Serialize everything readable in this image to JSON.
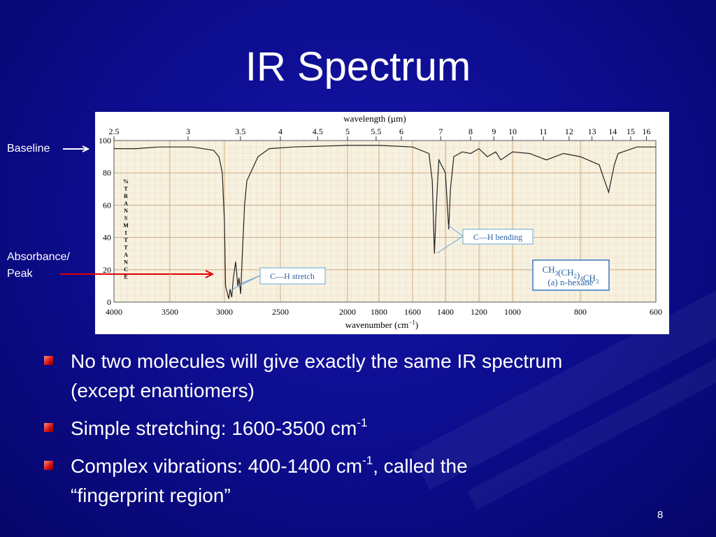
{
  "slide": {
    "title": "IR Spectrum",
    "page_number": "8",
    "callout_baseline": "Baseline",
    "callout_absorbance": [
      "Absorbance/",
      "Peak"
    ],
    "bullets": [
      [
        [
          {
            "text": "No two molecules will give exactly the same IR spectrum"
          }
        ],
        [
          {
            "text": "(except enantiomers)"
          }
        ]
      ],
      [
        [
          {
            "text": "Simple stretching:  1600-3500 cm"
          },
          {
            "sup": "-1"
          }
        ]
      ],
      [
        [
          {
            "text": "Complex vibrations:  400-1400 cm"
          },
          {
            "sup": "-1"
          },
          {
            "text": ", called the"
          }
        ],
        [
          {
            "text": "“fingerprint region”"
          }
        ]
      ]
    ]
  },
  "chart_data": {
    "type": "line",
    "x2label": "wavelength (µm)",
    "xlabel": {
      "text": "wavenumber (cm",
      "sup": "−1",
      "after": ")"
    },
    "ylabel": "% TRANSMITTANCE",
    "x": [
      4000,
      3800,
      3600,
      3300,
      3100,
      3050,
      3020,
      3000,
      2990,
      2962,
      2950,
      2935,
      2920,
      2900,
      2880,
      2870,
      2855,
      2840,
      2820,
      2800,
      2700,
      2600,
      2400,
      2000,
      1800,
      1600,
      1500,
      1480,
      1467,
      1455,
      1440,
      1400,
      1380,
      1370,
      1350,
      1300,
      1250,
      1200,
      1150,
      1100,
      1070,
      1000,
      950,
      900,
      850,
      800,
      780,
      750,
      740,
      725,
      710,
      700,
      650,
      600
    ],
    "values": [
      95,
      95,
      96,
      96,
      94,
      90,
      80,
      50,
      10,
      2,
      8,
      3,
      15,
      25,
      10,
      15,
      5,
      30,
      60,
      75,
      90,
      95,
      96,
      97,
      97,
      96,
      92,
      75,
      30,
      60,
      88,
      80,
      45,
      70,
      90,
      93,
      92,
      95,
      90,
      93,
      88,
      93,
      92,
      88,
      92,
      90,
      88,
      85,
      78,
      68,
      85,
      92,
      96,
      96
    ],
    "color": "#222222",
    "xlim": [
      4000,
      600
    ],
    "xticks": [
      4000,
      3500,
      3000,
      2500,
      2000,
      1800,
      1600,
      1400,
      1200,
      1000,
      800,
      600
    ],
    "x2ticks": [
      2.5,
      3,
      3.5,
      4,
      4.5,
      5,
      5.5,
      6,
      7,
      8,
      9,
      10,
      11,
      12,
      13,
      14,
      15,
      16
    ],
    "ylim": [
      0,
      100
    ],
    "yticks": [
      0,
      20,
      40,
      60,
      80,
      100
    ],
    "grid": true,
    "annotations": [
      "C—H stretch",
      "C—H bending"
    ],
    "compound": {
      "formula": "CH3(CH2)4CH3",
      "name": "(a) n-hexane"
    }
  }
}
